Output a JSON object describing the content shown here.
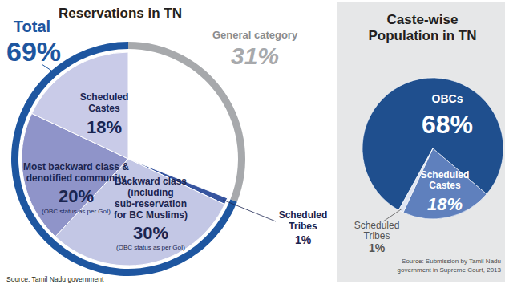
{
  "chart_data": [
    {
      "type": "donut",
      "title": "Reservations in TN",
      "categories": [
        "General category",
        "Scheduled Tribes",
        "Backward class (including sub-reservation for BC Muslims)",
        "Most backward class & denotified community",
        "Scheduled Castes"
      ],
      "values": [
        31,
        1,
        30,
        20,
        18
      ],
      "value_labels": [
        "31%",
        "1%",
        "30%",
        "20%",
        "18%"
      ],
      "notes": [
        null,
        null,
        "(OBC status as per GoI)",
        "(OBC status as per GoI)",
        null
      ],
      "colors": [
        "#ffffff",
        "#36549f",
        "#c3c7e5",
        "#8f94c9",
        "#c9cbe8"
      ],
      "annotations": [
        {
          "text": "Total",
          "value": 69,
          "label": "69%",
          "color": "#1e56a0"
        }
      ],
      "data_labels": true,
      "source": "Source: Tamil Nadu government"
    },
    {
      "type": "pie",
      "title": "Caste-wise Population in TN",
      "categories": [
        "OBCs",
        "Scheduled Castes",
        "Scheduled Tribes"
      ],
      "values": [
        68,
        18,
        1
      ],
      "value_labels": [
        "68%",
        "18%",
        "1%"
      ],
      "colors": [
        "#1f4f8e",
        "#5f80bd",
        "#dfe5f2"
      ],
      "data_labels": true,
      "source": "Source: Submission by Tamil Nadu government in Supreme Court, 2013"
    }
  ]
}
